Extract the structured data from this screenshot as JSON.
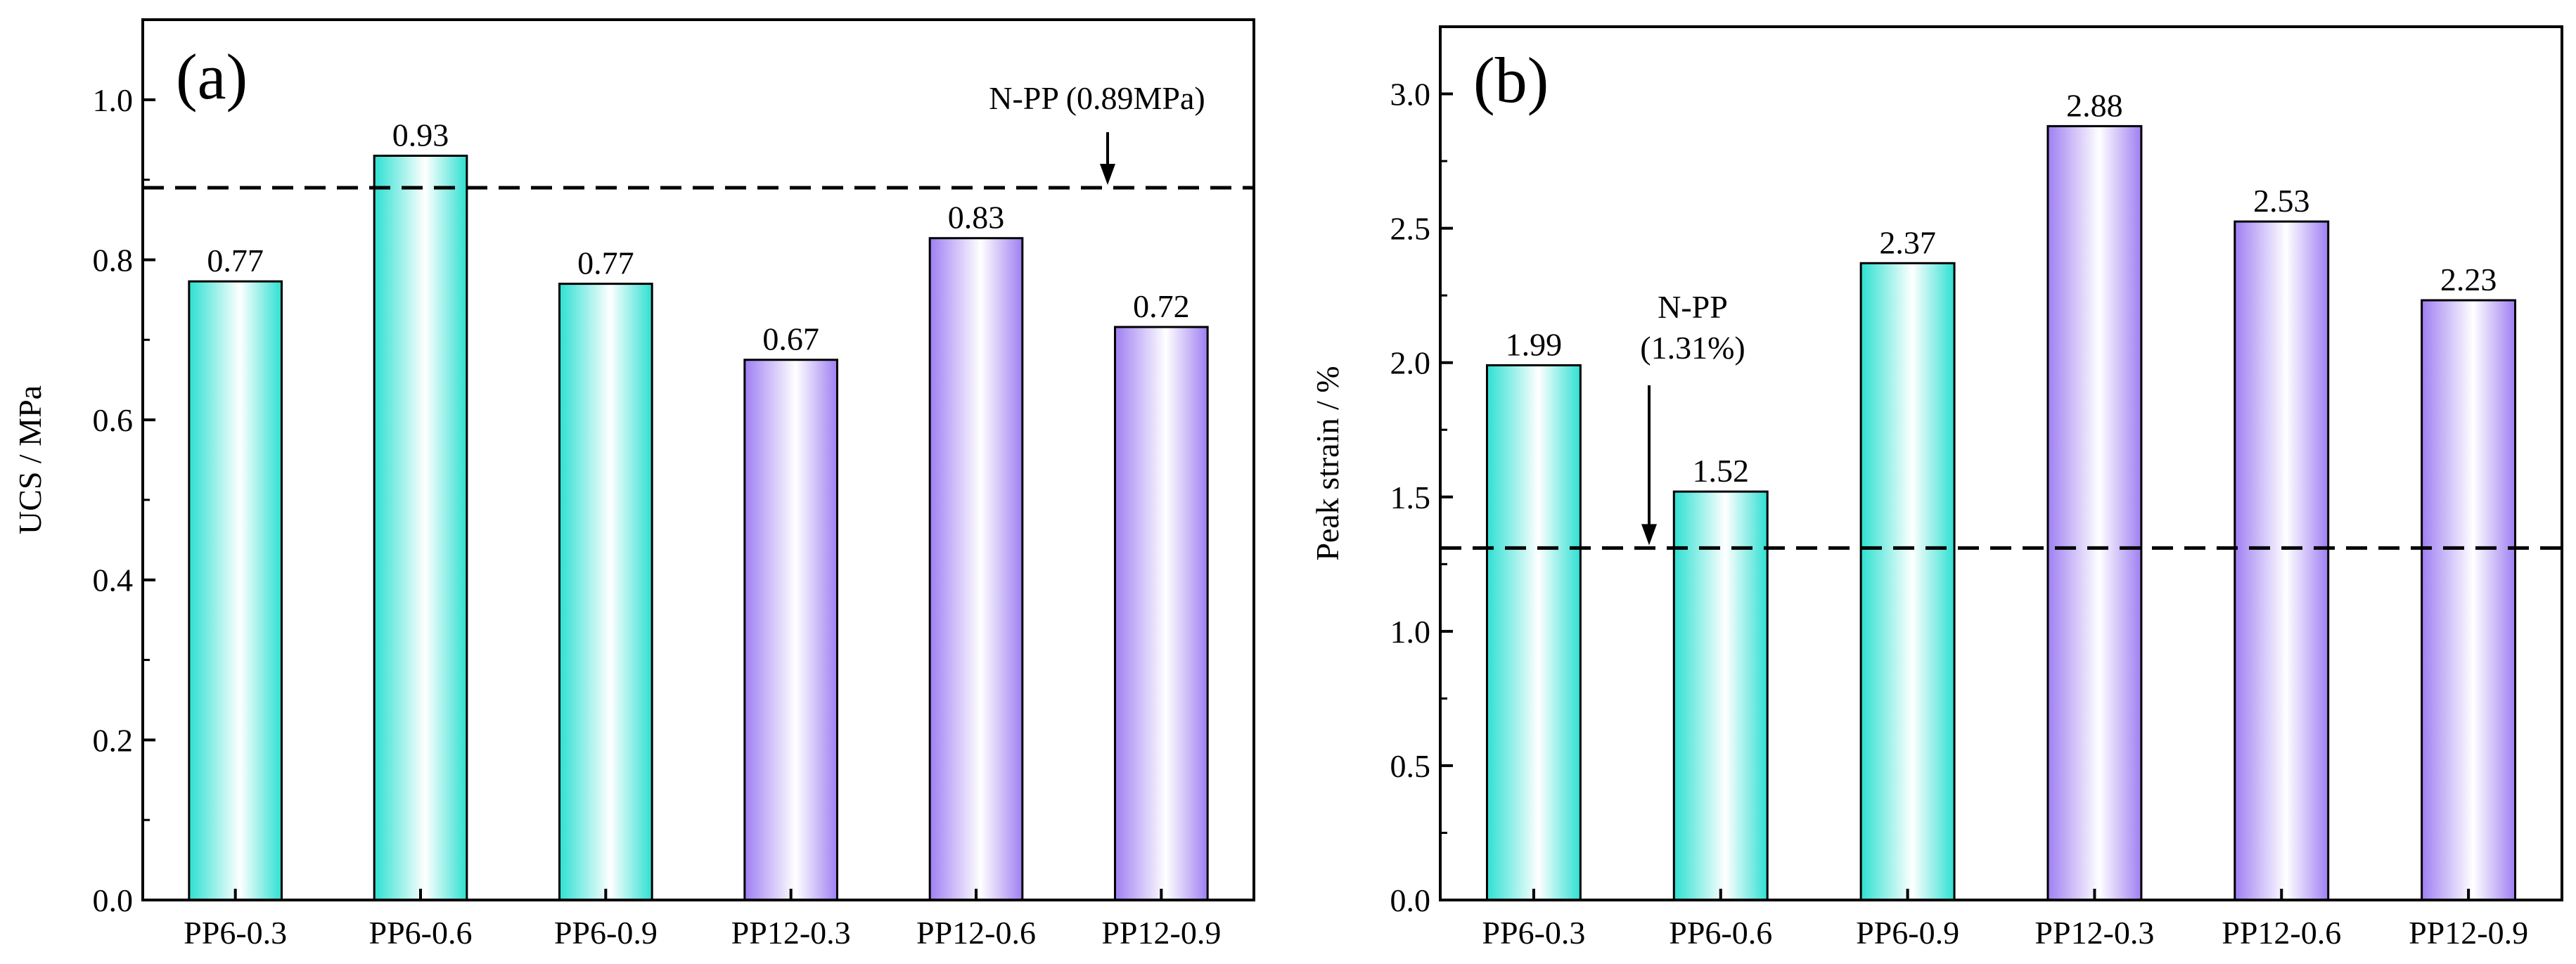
{
  "colors": {
    "teal": "#2ee0d2",
    "purple": "#9f7ff2",
    "frame": "#000000",
    "background": "#ffffff"
  },
  "chart_data": [
    {
      "type": "bar",
      "panel_tag": "(a)",
      "ylabel": "UCS / MPa",
      "ylim": [
        0,
        1.1
      ],
      "yticks": [
        "0.0",
        "0.2",
        "0.4",
        "0.6",
        "0.8",
        "1.0"
      ],
      "categories": [
        "PP6-0.3",
        "PP6-0.6",
        "PP6-0.9",
        "PP12-0.3",
        "PP12-0.6",
        "PP12-0.9"
      ],
      "values": [
        0.773,
        0.93,
        0.77,
        0.675,
        0.827,
        0.716
      ],
      "value_labels": [
        "0.77",
        "0.93",
        "0.77",
        "0.67",
        "0.83",
        "0.72"
      ],
      "bar_colors": [
        "teal",
        "teal",
        "teal",
        "purple",
        "purple",
        "purple"
      ],
      "reference": {
        "value": 0.89,
        "label_lines": [
          "N-PP (0.89MPa)"
        ]
      }
    },
    {
      "type": "bar",
      "panel_tag": "(b)",
      "ylabel": "Peak strain / %",
      "ylim": [
        0,
        3.25
      ],
      "yticks": [
        "0.0",
        "0.5",
        "1.0",
        "1.5",
        "2.0",
        "2.5",
        "3.0"
      ],
      "categories": [
        "PP6-0.3",
        "PP6-0.6",
        "PP6-0.9",
        "PP12-0.3",
        "PP12-0.6",
        "PP12-0.9"
      ],
      "values": [
        1.99,
        1.52,
        2.37,
        2.88,
        2.525,
        2.232
      ],
      "value_labels": [
        "1.99",
        "1.52",
        "2.37",
        "2.88",
        "2.53",
        "2.23"
      ],
      "bar_colors": [
        "teal",
        "teal",
        "teal",
        "purple",
        "purple",
        "purple"
      ],
      "reference": {
        "value": 1.31,
        "label_lines": [
          "N-PP",
          "(1.31%)"
        ]
      }
    }
  ]
}
